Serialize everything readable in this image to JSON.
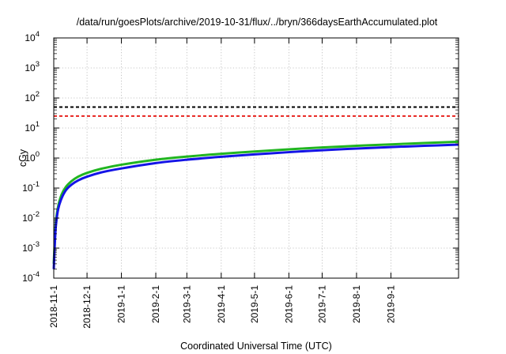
{
  "chart_data": {
    "type": "line",
    "title": "/data/run/goesPlots/archive/2019-10-31/flux/../bryn/366daysEarthAccumulated.plot",
    "xlabel": "Coordinated Universal Time (UTC)",
    "ylabel": "cGy",
    "yscale": "log",
    "ylim": [
      0.0001,
      10000
    ],
    "xlim": [
      "2018-11-01",
      "2019-11-01"
    ],
    "grid": true,
    "y_ticks": [
      {
        "value": 0.0001,
        "base": "10",
        "exp": "-4"
      },
      {
        "value": 0.001,
        "base": "10",
        "exp": "-3"
      },
      {
        "value": 0.01,
        "base": "10",
        "exp": "-2"
      },
      {
        "value": 0.1,
        "base": "10",
        "exp": "-1"
      },
      {
        "value": 1,
        "base": "10",
        "exp": "0"
      },
      {
        "value": 10,
        "base": "10",
        "exp": "1"
      },
      {
        "value": 100,
        "base": "10",
        "exp": "2"
      },
      {
        "value": 1000,
        "base": "10",
        "exp": "3"
      },
      {
        "value": 10000,
        "base": "10",
        "exp": "4"
      }
    ],
    "x_ticks": [
      {
        "date": "2018-11-01",
        "label": "2018-11-1"
      },
      {
        "date": "2018-12-01",
        "label": "2018-12-1"
      },
      {
        "date": "2019-01-01",
        "label": "2019-1-1"
      },
      {
        "date": "2019-02-01",
        "label": "2019-2-1"
      },
      {
        "date": "2019-03-01",
        "label": "2019-3-1"
      },
      {
        "date": "2019-04-01",
        "label": "2019-4-1"
      },
      {
        "date": "2019-05-01",
        "label": "2019-5-1"
      },
      {
        "date": "2019-06-01",
        "label": "2019-6-1"
      },
      {
        "date": "2019-07-01",
        "label": "2019-7-1"
      },
      {
        "date": "2019-08-01",
        "label": "2019-8-1"
      },
      {
        "date": "2019-09-01",
        "label": "2019-9-1"
      }
    ],
    "reference_lines": [
      {
        "value": 50,
        "color": "#000000",
        "style": "dashed"
      },
      {
        "value": 25,
        "color": "#e8231f",
        "style": "dashed"
      }
    ],
    "series": [
      {
        "color": "#21b521",
        "x": [
          "2018-11-01",
          "2018-11-02",
          "2018-11-03",
          "2018-11-05",
          "2018-11-08",
          "2018-11-12",
          "2018-11-17",
          "2018-11-23",
          "2018-12-01",
          "2018-12-15",
          "2019-01-01",
          "2019-02-01",
          "2019-03-01",
          "2019-04-01",
          "2019-05-01",
          "2019-06-01",
          "2019-07-01",
          "2019-08-01",
          "2019-09-01",
          "2019-10-01",
          "2019-11-01"
        ],
        "y": [
          0.0003,
          0.002,
          0.008,
          0.025,
          0.06,
          0.11,
          0.17,
          0.24,
          0.32,
          0.45,
          0.6,
          0.88,
          1.12,
          1.38,
          1.65,
          1.95,
          2.25,
          2.55,
          2.85,
          3.15,
          3.5
        ]
      },
      {
        "color": "#1414e6",
        "x": [
          "2018-11-01",
          "2018-11-02",
          "2018-11-03",
          "2018-11-05",
          "2018-11-08",
          "2018-11-12",
          "2018-11-17",
          "2018-11-23",
          "2018-12-01",
          "2018-12-15",
          "2019-01-01",
          "2019-02-01",
          "2019-03-01",
          "2019-04-01",
          "2019-05-01",
          "2019-06-01",
          "2019-07-01",
          "2019-08-01",
          "2019-09-01",
          "2019-10-01",
          "2019-11-01"
        ],
        "y": [
          0.0002,
          0.0015,
          0.006,
          0.02,
          0.045,
          0.085,
          0.13,
          0.18,
          0.24,
          0.34,
          0.45,
          0.68,
          0.88,
          1.1,
          1.32,
          1.57,
          1.82,
          2.07,
          2.32,
          2.55,
          2.8
        ]
      }
    ]
  }
}
